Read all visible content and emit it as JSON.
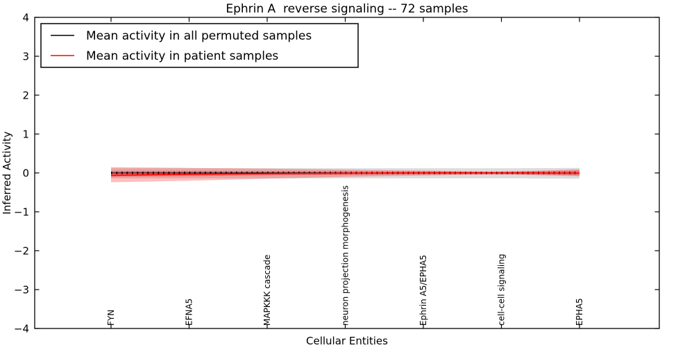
{
  "chart_data": {
    "type": "line",
    "title": "Ephrin A  reverse signaling -- 72 samples",
    "xlabel": "Cellular Entities",
    "ylabel": "Inferred Activity",
    "ylim": [
      -4,
      4
    ],
    "yticks": [
      4,
      3,
      2,
      1,
      0,
      -1,
      -2,
      -3,
      -4
    ],
    "x_categories": [
      "FYN",
      "EFNA5",
      "MAPKKK cascade",
      "neuron projection morphogenesis",
      "Ephrin A5/EPHA5",
      "cell-cell signaling",
      "EPHA5"
    ],
    "grid": false,
    "legend": {
      "position": "upper left",
      "entries": [
        {
          "label": "Mean activity in all permuted samples",
          "color": "#000000"
        },
        {
          "label": "Mean activity in patient samples",
          "color": "#ff0000"
        }
      ]
    },
    "series": [
      {
        "name": "permuted-mean",
        "legend_label": "Mean activity in all permuted samples",
        "color": "#000000",
        "line_style": "solid-with-dot-markers",
        "values": [
          0,
          0,
          0,
          0,
          0,
          0,
          0
        ],
        "band": {
          "upper": [
            0.12,
            0.12,
            0.12,
            0.12,
            0.12,
            0.12,
            0.13
          ],
          "lower": [
            -0.14,
            -0.14,
            -0.14,
            -0.14,
            -0.14,
            -0.14,
            -0.15
          ],
          "color": "#8a8a8a",
          "opacity": 0.3
        }
      },
      {
        "name": "patient-mean",
        "legend_label": "Mean activity in patient samples",
        "color": "#ff0000",
        "line_style": "solid",
        "values": [
          -0.06,
          -0.035,
          -0.02,
          -0.008,
          0.0,
          0.0,
          -0.005
        ],
        "band": {
          "upper": [
            0.15,
            0.13,
            0.11,
            0.085,
            0.06,
            0.035,
            0.095
          ],
          "lower": [
            -0.24,
            -0.2,
            -0.15,
            -0.1,
            -0.065,
            -0.045,
            -0.085
          ],
          "color": "#ff0000",
          "opacity": 0.25
        },
        "inner_band": {
          "upper": [
            0.05,
            0.05,
            0.045,
            0.04,
            0.035,
            0.03,
            0.06
          ],
          "lower": [
            -0.1,
            -0.08,
            -0.06,
            -0.05,
            -0.04,
            -0.035,
            -0.06
          ],
          "color": "#ff0000",
          "opacity": 0.3
        }
      }
    ]
  }
}
